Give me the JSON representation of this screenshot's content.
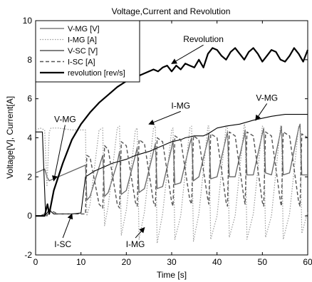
{
  "chart_data": {
    "type": "line",
    "title": "Voltage,Current and Revolution",
    "xlabel": "Time [s]",
    "ylabel": "Voltage[V], Current[A]",
    "xlim": [
      0,
      60
    ],
    "ylim": [
      -2,
      10
    ],
    "xticks": [
      0,
      10,
      20,
      30,
      40,
      50,
      60
    ],
    "yticks": [
      -2,
      0,
      2,
      4,
      6,
      8,
      10
    ],
    "grid": false,
    "legend_position": "top-left",
    "series": [
      {
        "name": "V-MG [V]",
        "color": "#666666",
        "style": "solid",
        "width": 1.3,
        "x": [
          0,
          1,
          2,
          2.5,
          3,
          5,
          8,
          10,
          11,
          11.3,
          12,
          14,
          14.8,
          15.2,
          16,
          18,
          18.5,
          18.9,
          20,
          22,
          22.4,
          22.8,
          24,
          26,
          26.4,
          26.8,
          28,
          30,
          30.3,
          30.7,
          32,
          34,
          34.4,
          34.8,
          36,
          38,
          38.2,
          38.6,
          40,
          42,
          42.3,
          42.7,
          44,
          46,
          46.2,
          46.6,
          48,
          50,
          50.3,
          50.7,
          52,
          54,
          54.2,
          54.6,
          56,
          58,
          58.3,
          58.7,
          60
        ],
        "y": [
          2.2,
          2.3,
          2.4,
          2.0,
          1.8,
          2.0,
          2.3,
          2.5,
          2.6,
          0.8,
          1.0,
          2.5,
          3.1,
          1.0,
          1.2,
          2.7,
          3.3,
          1.1,
          1.3,
          3.1,
          3.5,
          1.2,
          1.4,
          3.3,
          3.7,
          1.4,
          1.5,
          3.5,
          3.9,
          1.6,
          1.7,
          3.7,
          4.0,
          1.8,
          2.0,
          3.9,
          4.2,
          1.9,
          2.0,
          4.0,
          4.3,
          2.0,
          2.0,
          4.1,
          4.4,
          2.1,
          2.1,
          4.2,
          4.5,
          2.2,
          2.1,
          4.3,
          4.6,
          2.1,
          2.2,
          4.5,
          4.7,
          2.1,
          2.1
        ]
      },
      {
        "name": "I-MG [A]",
        "color": "#9a9a9a",
        "style": "dotted",
        "width": 1.2,
        "x": [
          0,
          1,
          2,
          2.5,
          3,
          3.4,
          5,
          8,
          10,
          11,
          11.3,
          12,
          14,
          14.8,
          15.2,
          16,
          18,
          18.5,
          18.9,
          20,
          22,
          22.4,
          22.8,
          24,
          26,
          26.4,
          26.8,
          28,
          30,
          30.3,
          30.7,
          32,
          34,
          34.4,
          34.8,
          36,
          38,
          38.2,
          38.6,
          40,
          42,
          42.3,
          42.7,
          44,
          46,
          46.2,
          46.6,
          48,
          50,
          50.3,
          50.7,
          52,
          54,
          54.2,
          54.6,
          56,
          58,
          58.3,
          58.7,
          60
        ],
        "y": [
          4.4,
          4.5,
          4.4,
          1.5,
          4.3,
          4.5,
          4.5,
          4.4,
          4.4,
          4.4,
          0.0,
          0.6,
          4.4,
          4.5,
          -0.5,
          0.5,
          4.5,
          4.6,
          -1.0,
          0.3,
          4.4,
          4.5,
          -1.2,
          0.2,
          4.5,
          4.6,
          -1.4,
          0.1,
          4.4,
          4.5,
          -1.2,
          0.0,
          4.5,
          4.6,
          -1.3,
          0.1,
          4.6,
          4.6,
          -1.2,
          0.0,
          4.6,
          4.6,
          -1.1,
          0.0,
          4.7,
          4.6,
          -1.2,
          0.1,
          4.6,
          4.5,
          -1.1,
          0.0,
          4.6,
          4.5,
          -1.2,
          0.1,
          4.6,
          4.5,
          -0.9,
          0.2
        ]
      },
      {
        "name": "V-SC [V]",
        "color": "#000000",
        "style": "solid",
        "width": 1.1,
        "x": [
          0,
          1.5,
          2.2,
          3,
          4,
          6,
          8,
          10,
          11,
          13,
          15,
          17,
          20,
          22,
          25,
          27,
          28,
          30,
          32,
          33,
          35,
          37,
          38,
          40,
          42,
          45,
          48,
          50,
          52,
          55,
          58,
          60
        ],
        "y": [
          4.3,
          4.3,
          0.05,
          0.3,
          0.1,
          0.1,
          0.1,
          0.15,
          2.0,
          2.3,
          2.5,
          2.7,
          2.9,
          3.1,
          3.3,
          3.5,
          3.6,
          3.8,
          3.9,
          4.0,
          4.1,
          4.1,
          4.2,
          4.5,
          4.6,
          4.7,
          4.9,
          5.0,
          5.1,
          5.2,
          5.2,
          5.2
        ]
      },
      {
        "name": "I-SC [A]",
        "color": "#555555",
        "style": "dashed",
        "width": 1.4,
        "x": [
          0,
          1,
          2,
          2.5,
          3,
          5,
          8,
          10,
          11,
          11.3,
          12,
          14,
          14.8,
          15.2,
          16,
          18,
          18.5,
          18.9,
          20,
          22,
          22.4,
          22.8,
          24,
          26,
          26.4,
          26.8,
          28,
          30,
          30.3,
          30.7,
          32,
          34,
          34.4,
          34.8,
          36,
          38,
          38.2,
          38.6,
          40,
          42,
          42.3,
          42.7,
          44,
          46,
          46.2,
          46.6,
          48,
          50,
          50.3,
          50.7,
          52,
          54,
          54.2,
          54.6,
          56,
          58,
          58.3,
          58.7,
          60
        ],
        "y": [
          0.0,
          0.0,
          0.1,
          0.0,
          0.3,
          0.1,
          0.1,
          0.1,
          0.1,
          3.1,
          3.0,
          0.6,
          0.4,
          3.6,
          3.4,
          0.6,
          0.4,
          3.8,
          3.6,
          0.7,
          0.5,
          3.9,
          3.7,
          0.7,
          0.5,
          4.0,
          3.8,
          0.7,
          0.5,
          4.1,
          3.9,
          0.8,
          0.6,
          4.1,
          3.9,
          0.8,
          0.6,
          4.2,
          4.0,
          0.7,
          0.5,
          4.3,
          4.1,
          0.8,
          0.6,
          4.3,
          4.1,
          0.7,
          0.5,
          4.3,
          4.1,
          0.7,
          0.5,
          4.3,
          4.1,
          0.7,
          0.5,
          4.2,
          4.0
        ]
      },
      {
        "name": "revolution [rev/s]",
        "color": "#000000",
        "style": "solid",
        "width": 2.2,
        "x": [
          0,
          1,
          2,
          2.3,
          2.6,
          3,
          4,
          6,
          8,
          10,
          12,
          14,
          16,
          18,
          20,
          22,
          24,
          26,
          27,
          28,
          29,
          30,
          31,
          32,
          33,
          34,
          35,
          36,
          37,
          38,
          39,
          40,
          41,
          42,
          43,
          44,
          45,
          46,
          47,
          48,
          49,
          50,
          51,
          52,
          53,
          54,
          55,
          56,
          57,
          58,
          59,
          60
        ],
        "y": [
          0.0,
          0.0,
          0.0,
          0.3,
          0.6,
          0.1,
          1.3,
          2.7,
          3.9,
          4.7,
          5.3,
          5.8,
          6.2,
          6.6,
          6.9,
          7.1,
          7.3,
          7.5,
          7.4,
          7.6,
          7.7,
          7.4,
          7.7,
          7.5,
          7.8,
          7.7,
          7.6,
          8.0,
          7.6,
          8.3,
          8.6,
          8.5,
          8.2,
          8.0,
          8.4,
          8.6,
          8.3,
          8.0,
          8.4,
          8.6,
          8.3,
          7.9,
          8.2,
          8.5,
          8.4,
          8.0,
          7.9,
          8.2,
          8.6,
          8.3,
          7.9,
          8.5
        ]
      }
    ],
    "annotations": [
      {
        "text": "Revolution",
        "x": 37,
        "y": 8.9,
        "arrow_to": [
          30,
          7.8
        ]
      },
      {
        "text": "I-MG",
        "x": 32,
        "y": 5.5,
        "arrow_to": [
          25,
          4.7
        ]
      },
      {
        "text": "V-MG",
        "x": 51,
        "y": 5.9,
        "arrow_to": [
          48.5,
          4.9
        ]
      },
      {
        "text": "V-MG",
        "x": 6.5,
        "y": 4.8,
        "arrow_to": [
          4,
          1.8
        ]
      },
      {
        "text": "I-SC",
        "x": 6,
        "y": -1.6,
        "arrow_to": [
          8,
          0.1
        ]
      },
      {
        "text": "I-MG",
        "x": 22,
        "y": -1.6,
        "arrow_to": [
          24,
          -0.6
        ]
      }
    ]
  }
}
